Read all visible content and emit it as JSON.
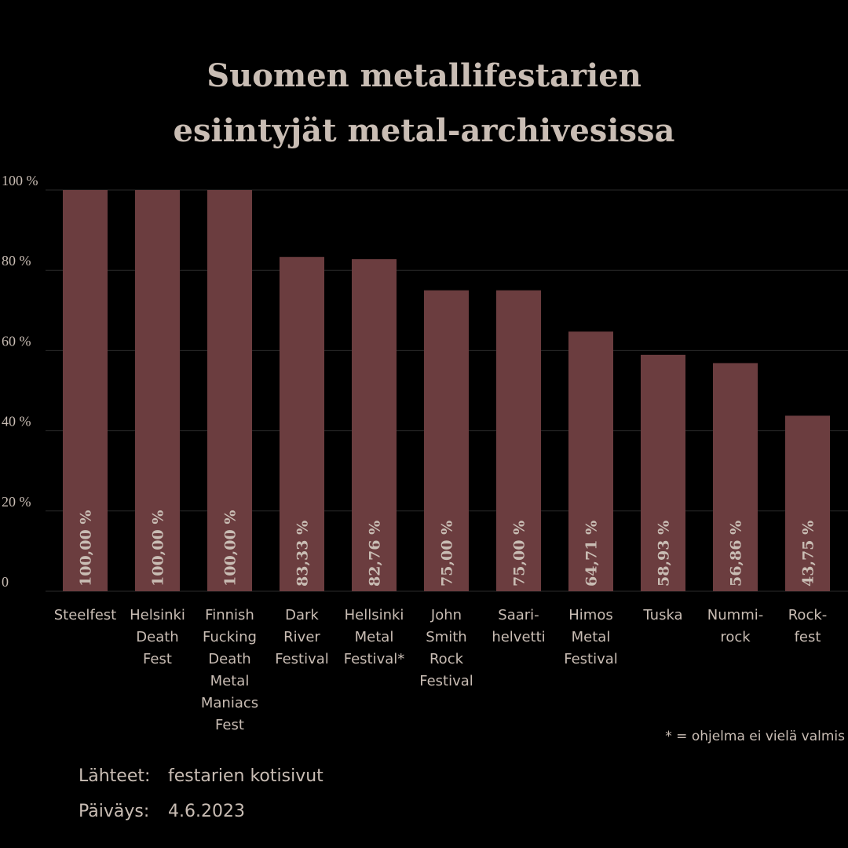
{
  "chart_data": {
    "type": "bar",
    "title_lines": [
      "Suomen metallifestarien",
      "esiintyjät metal-archivesissa"
    ],
    "categories": [
      [
        "Steelfest"
      ],
      [
        "Helsinki",
        "Death",
        "Fest"
      ],
      [
        "Finnish",
        "Fucking",
        "Death",
        "Metal",
        "Maniacs",
        "Fest"
      ],
      [
        "Dark",
        "River",
        "Festival"
      ],
      [
        "Hellsinki",
        "Metal",
        "Festival*"
      ],
      [
        "John",
        "Smith",
        "Rock",
        "Festival"
      ],
      [
        "Saari-",
        "helvetti"
      ],
      [
        "Himos",
        "Metal",
        "Festival"
      ],
      [
        "Tuska"
      ],
      [
        "Nummi-",
        "rock"
      ],
      [
        "Rock-",
        "fest"
      ]
    ],
    "values": [
      100.0,
      100.0,
      100.0,
      83.33,
      82.76,
      75.0,
      75.0,
      64.71,
      58.93,
      56.86,
      43.75
    ],
    "value_labels": [
      "100,00 %",
      "100,00 %",
      "100,00 %",
      "83,33 %",
      "82,76 %",
      "75,00 %",
      "75,00 %",
      "64,71 %",
      "58,93 %",
      "56,86 %",
      "43,75 %"
    ],
    "y_ticks": [
      0,
      20,
      40,
      60,
      80,
      100
    ],
    "y_tick_labels": [
      "0",
      "20 %",
      "40 %",
      "60 %",
      "80 %",
      "100 %"
    ],
    "ylim": [
      0,
      100
    ],
    "grid": true,
    "legend": "none",
    "bar_color": "#6b3d3f",
    "text_color": "#c9bdb4",
    "grid_color": "#2a2a2a",
    "background": "#000000"
  },
  "footnote": "* = ohjelma ei vielä valmis",
  "sources_label": "Lähteet:",
  "sources_value": "festarien kotisivut",
  "date_label": "Päiväys:",
  "date_value": "4.6.2023"
}
